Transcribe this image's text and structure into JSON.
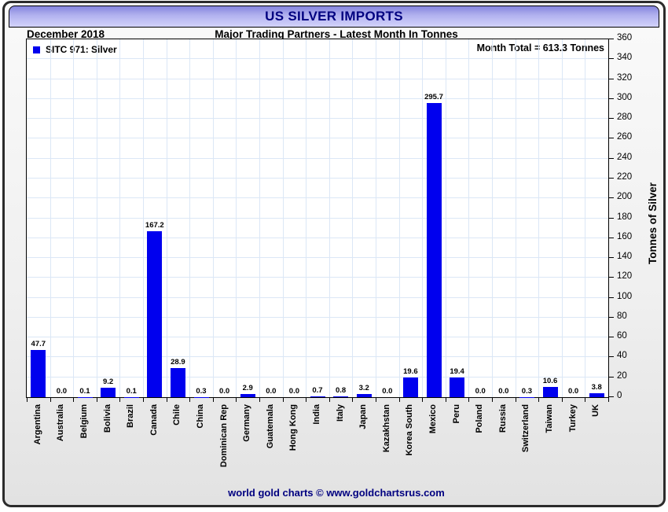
{
  "title_bar": {
    "title": "US SILVER IMPORTS"
  },
  "header": {
    "date": "December 2018",
    "subtitle": "Major Trading Partners - Latest Month In Tonnes"
  },
  "legend": {
    "label": "SITC 971: Silver"
  },
  "annotation": {
    "month_total": "Month Total = 613.3 Tonnes"
  },
  "footer": {
    "credit": "world gold charts © www.goldchartsrus.com"
  },
  "colors": {
    "bar": "#0000ee",
    "title_text": "#000080",
    "footer_text": "#000080",
    "grid": "#dbe7f6",
    "axis": "#000000"
  },
  "chart_data": {
    "type": "bar",
    "title": "US SILVER IMPORTS",
    "subtitle": "Major Trading Partners - Latest Month In Tonnes",
    "period": "December 2018",
    "series_name": "SITC 971: Silver",
    "month_total": 613.3,
    "ylabel": "Tonnes of Silver",
    "ylim": [
      0,
      360
    ],
    "ytick_step": 20,
    "grid": true,
    "legend_position": "top-left",
    "categories": [
      "Argentina",
      "Australia",
      "Belgium",
      "Bolivia",
      "Brazil",
      "Canada",
      "Chile",
      "China",
      "Dominican Rep",
      "Germany",
      "Guatemala",
      "Hong Kong",
      "India",
      "Italy",
      "Japan",
      "Kazakhstan",
      "Korea South",
      "Mexico",
      "Peru",
      "Poland",
      "Russia",
      "Switzerland",
      "Taiwan",
      "Turkey",
      "UK"
    ],
    "values": [
      47.7,
      0.0,
      0.1,
      9.2,
      0.1,
      167.2,
      28.9,
      0.3,
      0.0,
      2.9,
      0.0,
      0.0,
      0.7,
      0.8,
      3.2,
      0.0,
      19.6,
      295.7,
      19.4,
      0.0,
      0.0,
      0.3,
      10.6,
      0.0,
      3.8
    ]
  }
}
